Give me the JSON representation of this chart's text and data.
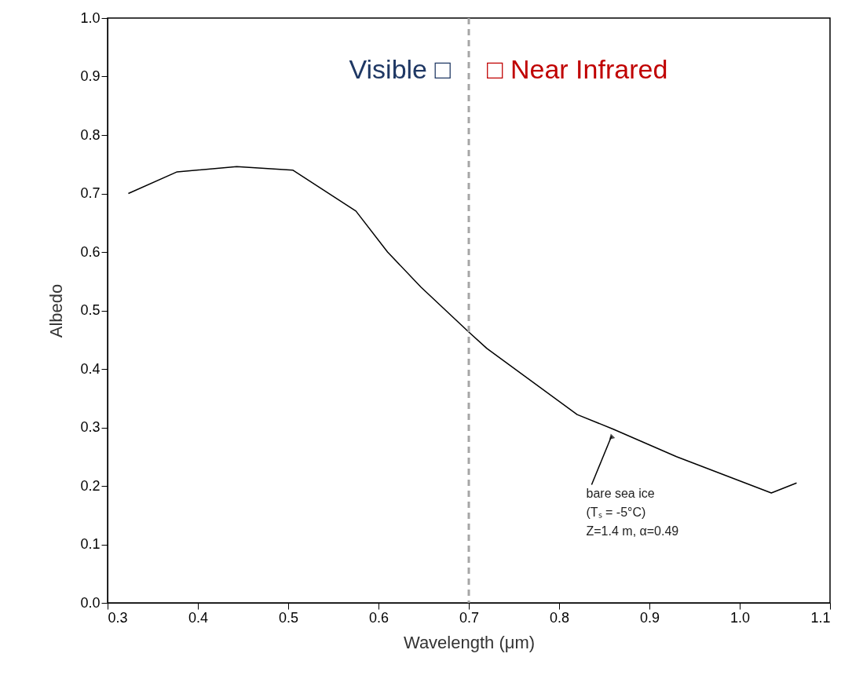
{
  "chart_data": {
    "type": "line",
    "xlabel": "Wavelength  (μm)",
    "ylabel": "Albedo",
    "x": [
      0.323,
      0.377,
      0.443,
      0.505,
      0.575,
      0.61,
      0.647,
      0.7,
      0.72,
      0.82,
      0.86,
      0.93,
      1.035,
      1.063
    ],
    "series": [
      {
        "color": "#000000",
        "values": [
          0.7,
          0.737,
          0.746,
          0.74,
          0.67,
          0.6,
          0.54,
          0.463,
          0.435,
          0.322,
          0.297,
          0.25,
          0.188,
          0.205
        ]
      }
    ],
    "xlim": [
      0.3,
      1.1
    ],
    "ylim": [
      0,
      1
    ],
    "xticks": [
      0.3,
      0.4,
      0.5,
      0.6,
      0.7,
      0.8,
      0.9,
      {
        "value": 1.0,
        "label": "1.0"
      },
      1.1
    ],
    "yticks": [
      {
        "value": 0,
        "label": "0.0"
      },
      0.1,
      0.2,
      0.3,
      0.4,
      0.5,
      0.6,
      0.7,
      0.8,
      0.9,
      {
        "value": 1.0,
        "label": "1.0"
      }
    ],
    "ref_lines": [
      {
        "axis": "x",
        "value": 0.7,
        "color": "#a6a6a6",
        "line_style": "dashed"
      }
    ],
    "annotations": [
      "Visible □",
      "□ Near Infrared",
      {
        "text": "bare sea ice\n(Tₛ = -5°C)\nZ=1.4 m, α=0.49",
        "x": 0.86,
        "y": 0.297
      }
    ],
    "marker": "none",
    "line_style": "solid"
  }
}
